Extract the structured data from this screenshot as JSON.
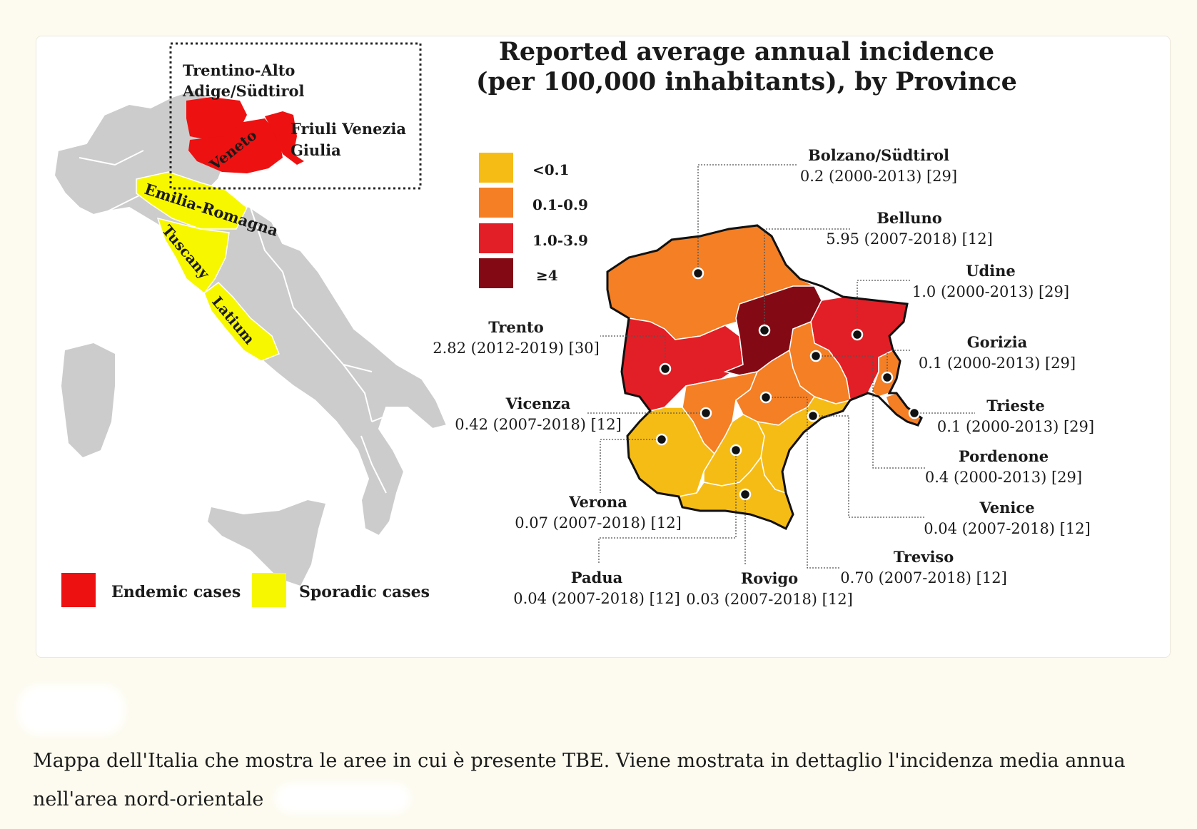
{
  "left_map": {
    "regions": [
      {
        "name": "Trentino-Alto",
        "name2": "Adige/Südtirol",
        "status": "endemic"
      },
      {
        "name": "Veneto",
        "status": "endemic"
      },
      {
        "name": "Friuli Venezia",
        "name2": "Giulia",
        "status": "endemic"
      },
      {
        "name": "Emilia-Romagna",
        "status": "sporadic"
      },
      {
        "name": "Tuscany",
        "status": "sporadic"
      },
      {
        "name": "Latium",
        "status": "sporadic"
      }
    ],
    "legend": [
      {
        "label": "Endemic cases",
        "color": "#ee1111"
      },
      {
        "label": "Sporadic cases",
        "color": "#f7f700"
      }
    ]
  },
  "right_map": {
    "title_line1": "Reported average annual incidence",
    "title_line2": "(per 100,000 inhabitants), by Province",
    "legend": [
      {
        "label": "<0.1",
        "color": "#f6bc16"
      },
      {
        "label": "0.1-0.9",
        "color": "#f47f24"
      },
      {
        "label": "1.0-3.9",
        "color": "#e21f26"
      },
      {
        "label": "≥4",
        "color": "#830a14"
      }
    ],
    "provinces": [
      {
        "name": "Bolzano/Südtirol",
        "value": "0.2 (2000-2013) [29]"
      },
      {
        "name": "Belluno",
        "value": "5.95 (2007-2018) [12]"
      },
      {
        "name": "Udine",
        "value": "1.0 (2000-2013) [29]"
      },
      {
        "name": "Trento",
        "value": "2.82 (2012-2019) [30]"
      },
      {
        "name": "Gorizia",
        "value": "0.1 (2000-2013) [29]"
      },
      {
        "name": "Vicenza",
        "value": "0.42 (2007-2018) [12]"
      },
      {
        "name": "Trieste",
        "value": "0.1 (2000-2013) [29]"
      },
      {
        "name": "Pordenone",
        "value": "0.4 (2000-2013) [29]"
      },
      {
        "name": "Verona",
        "value": "0.07 (2007-2018) [12]"
      },
      {
        "name": "Venice",
        "value": "0.04 (2007-2018) [12]"
      },
      {
        "name": "Treviso",
        "value": "0.70 (2007-2018) [12]"
      },
      {
        "name": "Padua",
        "value": "0.04 (2007-2018) [12]"
      },
      {
        "name": "Rovigo",
        "value": "0.03 (2007-2018) [12]"
      }
    ]
  },
  "caption": {
    "line1": "Mappa dell'Italia che mostra le aree in cui è presente TBE. Viene mostrata in dettaglio l'incidenza media annua",
    "line2": "nell'area nord-orientale"
  }
}
